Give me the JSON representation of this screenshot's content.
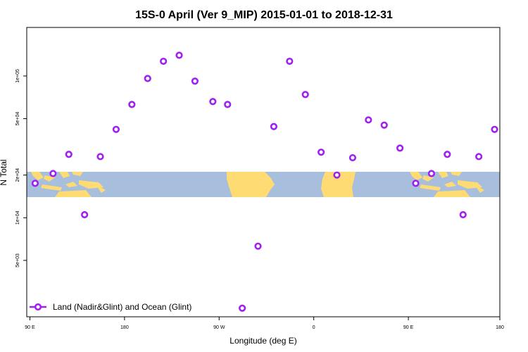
{
  "chart_data": {
    "type": "scatter",
    "title": "15S-0 April (Ver 9_MIP)   2015-01-01 to 2018-12-31",
    "xlabel": "Longitude (deg E)",
    "ylabel": "N Total",
    "x_scale": "linear",
    "y_scale": "log",
    "xlim": [
      87,
      537
    ],
    "ylim": [
      2000,
      220000
    ],
    "x_ticks": [
      {
        "value": 90,
        "label": "90 E"
      },
      {
        "value": 180,
        "label": "180"
      },
      {
        "value": 270,
        "label": "90 W"
      },
      {
        "value": 360,
        "label": "0"
      },
      {
        "value": 450,
        "label": "90 E"
      },
      {
        "value": 540,
        "label": "180"
      }
    ],
    "y_ticks": [
      {
        "value": 5000,
        "label": "5e+03"
      },
      {
        "value": 10000,
        "label": "1e+04"
      },
      {
        "value": 20000,
        "label": "2e+04"
      },
      {
        "value": 50000,
        "label": "5e+04"
      },
      {
        "value": 100000,
        "label": "1e+05"
      }
    ],
    "grid": false,
    "legend_position": "bottom-left",
    "series": [
      {
        "name": "Land (Nadir&Glint) and Ocean (Glint)",
        "color": "#a020f0",
        "x": [
          95,
          112,
          127,
          142,
          157,
          172,
          187,
          202,
          217,
          232,
          247,
          264,
          278,
          292,
          307,
          322,
          337,
          352,
          367,
          382,
          397,
          412,
          427,
          442,
          457,
          472,
          487,
          502,
          517,
          532
        ],
        "y": [
          17500,
          20500,
          28000,
          10500,
          27000,
          42000,
          63000,
          96000,
          127000,
          140000,
          92000,
          66000,
          63000,
          2300,
          6300,
          44000,
          127000,
          74000,
          29000,
          20000,
          26500,
          49000,
          45000,
          31000,
          17500,
          20500,
          28000,
          10500,
          27000,
          42000
        ]
      }
    ],
    "map_strip": {
      "lat_range": "15S-0",
      "ocean_color": "#a7bedd",
      "land_color": "#ffdb73"
    }
  }
}
